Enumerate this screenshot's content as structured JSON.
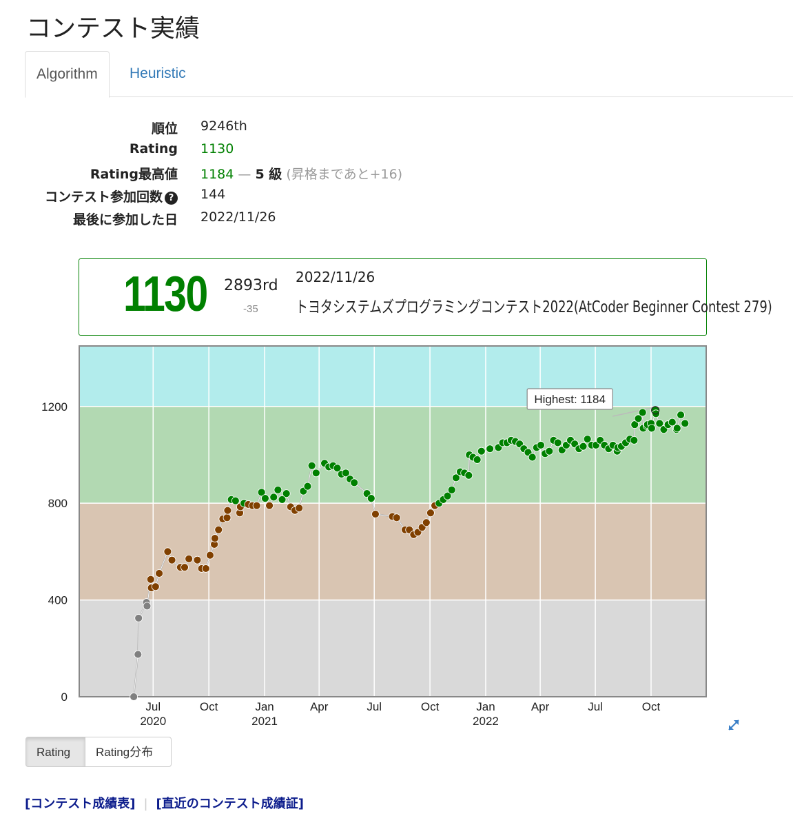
{
  "page_title": "コンテスト実績",
  "tabs": [
    {
      "label": "Algorithm",
      "active": true
    },
    {
      "label": "Heuristic",
      "active": false
    }
  ],
  "stats": {
    "rank_label": "順位",
    "rank_value": "9246th",
    "rating_label": "Rating",
    "rating_value": "1130",
    "max_label": "Rating最高値",
    "max_value": "1184",
    "max_dash": "—",
    "max_kyu": "5 級",
    "max_note": "(昇格まであと+16)",
    "count_label": "コンテスト参加回数",
    "count_value": "144",
    "last_label": "最後に参加した日",
    "last_value": "2022/11/26"
  },
  "status_box": {
    "rating": "1130",
    "place": "2893rd",
    "diff": "-35",
    "date": "2022/11/26",
    "contest": "トヨタシステムズプログラミングコンテスト2022(AtCoder Beginner Contest 279)"
  },
  "chart_data": {
    "type": "line",
    "x_type": "date",
    "xlim": [
      "2020-03-01",
      "2022-12-31"
    ],
    "ylim": [
      0,
      1450
    ],
    "y_ticks": [
      0,
      400,
      800,
      1200
    ],
    "x_ticks": [
      {
        "date": "2020-07-01",
        "label": "Jul",
        "year": "2020"
      },
      {
        "date": "2020-10-01",
        "label": "Oct",
        "year": ""
      },
      {
        "date": "2021-01-01",
        "label": "Jan",
        "year": "2021"
      },
      {
        "date": "2021-04-01",
        "label": "Apr",
        "year": ""
      },
      {
        "date": "2021-07-01",
        "label": "Jul",
        "year": ""
      },
      {
        "date": "2021-10-01",
        "label": "Oct",
        "year": ""
      },
      {
        "date": "2022-01-01",
        "label": "Jan",
        "year": "2022"
      },
      {
        "date": "2022-04-01",
        "label": "Apr",
        "year": ""
      },
      {
        "date": "2022-07-01",
        "label": "Jul",
        "year": ""
      },
      {
        "date": "2022-10-01",
        "label": "Oct",
        "year": ""
      }
    ],
    "bands": [
      {
        "from": 0,
        "to": 400,
        "color": "#d9d9d9"
      },
      {
        "from": 400,
        "to": 800,
        "color": "#d9c5b2"
      },
      {
        "from": 800,
        "to": 1200,
        "color": "#b2d9b2"
      },
      {
        "from": 1200,
        "to": 1450,
        "color": "#b2ecec"
      }
    ],
    "tier_colors": {
      "gray": "#808080",
      "brown": "#804000",
      "green": "#008000"
    },
    "highest": {
      "value": 1184,
      "date": "2022-10-08",
      "label": "Highest: 1184"
    },
    "points": [
      [
        "2020-05-30",
        0
      ],
      [
        "2020-06-06",
        175
      ],
      [
        "2020-06-07",
        325
      ],
      [
        "2020-06-20",
        390
      ],
      [
        "2020-06-21",
        375
      ],
      [
        "2020-06-27",
        485
      ],
      [
        "2020-06-28",
        450
      ],
      [
        "2020-07-05",
        455
      ],
      [
        "2020-07-11",
        510
      ],
      [
        "2020-07-25",
        600
      ],
      [
        "2020-08-01",
        565
      ],
      [
        "2020-08-15",
        535
      ],
      [
        "2020-08-22",
        535
      ],
      [
        "2020-08-29",
        570
      ],
      [
        "2020-09-12",
        565
      ],
      [
        "2020-09-19",
        530
      ],
      [
        "2020-09-26",
        530
      ],
      [
        "2020-10-03",
        585
      ],
      [
        "2020-10-10",
        630
      ],
      [
        "2020-10-11",
        655
      ],
      [
        "2020-10-17",
        690
      ],
      [
        "2020-10-24",
        735
      ],
      [
        "2020-10-31",
        740
      ],
      [
        "2020-11-01",
        770
      ],
      [
        "2020-11-07",
        815
      ],
      [
        "2020-11-14",
        810
      ],
      [
        "2020-11-21",
        760
      ],
      [
        "2020-11-22",
        785
      ],
      [
        "2020-11-28",
        800
      ],
      [
        "2020-12-05",
        795
      ],
      [
        "2020-12-12",
        790
      ],
      [
        "2020-12-19",
        790
      ],
      [
        "2020-12-27",
        845
      ],
      [
        "2021-01-02",
        820
      ],
      [
        "2021-01-09",
        790
      ],
      [
        "2021-01-16",
        825
      ],
      [
        "2021-01-23",
        855
      ],
      [
        "2021-01-30",
        815
      ],
      [
        "2021-02-06",
        840
      ],
      [
        "2021-02-13",
        785
      ],
      [
        "2021-02-20",
        770
      ],
      [
        "2021-02-27",
        780
      ],
      [
        "2021-03-06",
        850
      ],
      [
        "2021-03-13",
        870
      ],
      [
        "2021-03-20",
        955
      ],
      [
        "2021-03-27",
        925
      ],
      [
        "2021-04-10",
        965
      ],
      [
        "2021-04-17",
        950
      ],
      [
        "2021-04-24",
        955
      ],
      [
        "2021-05-01",
        945
      ],
      [
        "2021-05-08",
        920
      ],
      [
        "2021-05-15",
        925
      ],
      [
        "2021-05-22",
        900
      ],
      [
        "2021-05-29",
        885
      ],
      [
        "2021-06-19",
        840
      ],
      [
        "2021-06-26",
        820
      ],
      [
        "2021-07-03",
        755
      ],
      [
        "2021-07-31",
        745
      ],
      [
        "2021-08-07",
        740
      ],
      [
        "2021-08-21",
        690
      ],
      [
        "2021-08-28",
        690
      ],
      [
        "2021-09-04",
        670
      ],
      [
        "2021-09-11",
        680
      ],
      [
        "2021-09-18",
        700
      ],
      [
        "2021-09-25",
        720
      ],
      [
        "2021-10-02",
        760
      ],
      [
        "2021-10-09",
        790
      ],
      [
        "2021-10-16",
        800
      ],
      [
        "2021-10-23",
        815
      ],
      [
        "2021-10-30",
        830
      ],
      [
        "2021-11-06",
        855
      ],
      [
        "2021-11-13",
        905
      ],
      [
        "2021-11-20",
        930
      ],
      [
        "2021-11-27",
        925
      ],
      [
        "2021-12-04",
        915
      ],
      [
        "2021-12-05",
        1000
      ],
      [
        "2021-12-11",
        990
      ],
      [
        "2021-12-18",
        980
      ],
      [
        "2021-12-25",
        1015
      ],
      [
        "2022-01-08",
        1025
      ],
      [
        "2022-01-22",
        1030
      ],
      [
        "2022-01-29",
        1050
      ],
      [
        "2022-02-05",
        1050
      ],
      [
        "2022-02-12",
        1060
      ],
      [
        "2022-02-19",
        1055
      ],
      [
        "2022-02-26",
        1045
      ],
      [
        "2022-03-05",
        1025
      ],
      [
        "2022-03-12",
        1010
      ],
      [
        "2022-03-19",
        990
      ],
      [
        "2022-03-26",
        1030
      ],
      [
        "2022-04-02",
        1040
      ],
      [
        "2022-04-09",
        1005
      ],
      [
        "2022-04-16",
        1015
      ],
      [
        "2022-04-23",
        1060
      ],
      [
        "2022-04-30",
        1050
      ],
      [
        "2022-05-07",
        1020
      ],
      [
        "2022-05-14",
        1040
      ],
      [
        "2022-05-21",
        1060
      ],
      [
        "2022-05-28",
        1045
      ],
      [
        "2022-06-04",
        1025
      ],
      [
        "2022-06-11",
        1035
      ],
      [
        "2022-06-18",
        1065
      ],
      [
        "2022-06-25",
        1040
      ],
      [
        "2022-07-02",
        1040
      ],
      [
        "2022-07-09",
        1060
      ],
      [
        "2022-07-16",
        1040
      ],
      [
        "2022-07-23",
        1025
      ],
      [
        "2022-07-30",
        1040
      ],
      [
        "2022-08-06",
        1015
      ],
      [
        "2022-08-07",
        1030
      ],
      [
        "2022-08-13",
        1035
      ],
      [
        "2022-08-20",
        1050
      ],
      [
        "2022-08-27",
        1065
      ],
      [
        "2022-09-03",
        1060
      ],
      [
        "2022-09-04",
        1125
      ],
      [
        "2022-09-10",
        1150
      ],
      [
        "2022-09-17",
        1175
      ],
      [
        "2022-09-18",
        1110
      ],
      [
        "2022-09-24",
        1120
      ],
      [
        "2022-09-25",
        1125
      ],
      [
        "2022-10-01",
        1130
      ],
      [
        "2022-10-02",
        1110
      ],
      [
        "2022-10-08",
        1184
      ],
      [
        "2022-10-09",
        1170
      ],
      [
        "2022-10-15",
        1130
      ],
      [
        "2022-10-22",
        1105
      ],
      [
        "2022-10-29",
        1125
      ],
      [
        "2022-11-05",
        1135
      ],
      [
        "2022-11-12",
        1105
      ],
      [
        "2022-11-13",
        1110
      ],
      [
        "2022-11-19",
        1165
      ],
      [
        "2022-11-26",
        1130
      ]
    ]
  },
  "buttons": {
    "rating": "Rating",
    "distribution": "Rating分布"
  },
  "links": {
    "history": "[コンテスト成績表]",
    "certificate": "[直近のコンテスト成績証]",
    "sep": "|"
  }
}
